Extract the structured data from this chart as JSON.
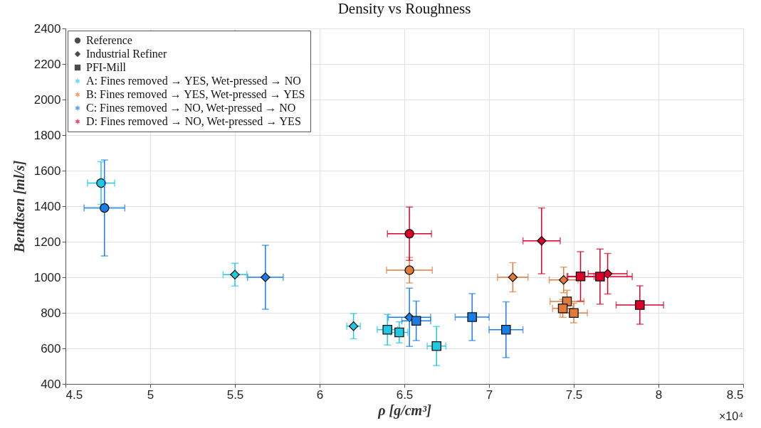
{
  "chart_data": {
    "type": "scatter",
    "title": "Density vs Roughness",
    "xlabel": "ρ [g/cm³]",
    "ylabel": "Bendtsen [ml/s]",
    "annotations": [
      "×10⁴"
    ],
    "xlim": [
      4.5,
      8.5
    ],
    "xticks": [
      4.5,
      5,
      5.5,
      6,
      6.5,
      7,
      7.5,
      8,
      8.5
    ],
    "ylim": [
      400,
      2400
    ],
    "yticks": [
      400,
      600,
      800,
      1000,
      1200,
      1400,
      1600,
      1800,
      2000,
      2200,
      2400
    ],
    "grid": true,
    "legend": "top left",
    "series": [
      {
        "name": "Reference",
        "color": "#000000",
        "marker": "circle"
      },
      {
        "name": "Industrial Refiner",
        "color": "#000000",
        "marker": "diamond"
      },
      {
        "name": "PFI-Mill",
        "color": "#000000",
        "marker": "square"
      },
      {
        "name": "A: Fines removed → YES, Wet-pressed → NO",
        "color": "#2bd0e8",
        "marker": "star"
      },
      {
        "name": "B: Fines removed → YES, Wet-pressed → YES",
        "color": "#e8823c",
        "marker": "star"
      },
      {
        "name": "C: Fines removed → NO, Wet-pressed → NO",
        "color": "#1e80f0",
        "marker": "star"
      },
      {
        "name": "D: Fines removed → NO, Wet-pressed → YES",
        "color": "#e0103a",
        "marker": "star"
      },
      {
        "color": "#1fc8e3",
        "marker": "circle",
        "x": [
          4.71
        ],
        "values": [
          1530
        ],
        "xerrors": [
          0.08
        ],
        "errors": [
          120
        ]
      },
      {
        "color": "#e07b39",
        "marker": "circle",
        "x": [
          6.53
        ],
        "values": [
          1040
        ],
        "xerrors": [
          0.135
        ],
        "errors": [
          72
        ]
      },
      {
        "color": "#1a7ee8",
        "marker": "circle",
        "x": [
          4.73
        ],
        "values": [
          1390
        ],
        "xerrors": [
          0.12
        ],
        "errors": [
          270
        ]
      },
      {
        "color": "#d9002b",
        "marker": "circle",
        "x": [
          6.53
        ],
        "values": [
          1245
        ],
        "xerrors": [
          0.13
        ],
        "errors": [
          150
        ]
      },
      {
        "color": "#1fc8e3",
        "marker": "diamond",
        "x": [
          5.5,
          6.2
        ],
        "values": [
          1015,
          725
        ],
        "xerrors": [
          0.07,
          0.04
        ],
        "errors": [
          64,
          71
        ]
      },
      {
        "color": "#e07b39",
        "marker": "diamond",
        "x": [
          7.14,
          7.44
        ],
        "values": [
          1000,
          985
        ],
        "xerrors": [
          0.09,
          0.085
        ],
        "errors": [
          82,
          72
        ]
      },
      {
        "color": "#1a7ee8",
        "marker": "diamond",
        "x": [
          5.68,
          6.53
        ],
        "values": [
          1000,
          775
        ],
        "xerrors": [
          0.105,
          0.125
        ],
        "errors": [
          180,
          164
        ]
      },
      {
        "color": "#d9002b",
        "marker": "diamond",
        "x": [
          7.31,
          7.7
        ],
        "values": [
          1205,
          1020
        ],
        "xerrors": [
          0.11,
          0.115
        ],
        "errors": [
          185,
          114
        ]
      },
      {
        "color": "#1fc8e3",
        "marker": "square",
        "x": [
          6.4,
          6.47,
          6.69
        ],
        "values": [
          705,
          690,
          613
        ],
        "xerrors": [
          0.06,
          0.05,
          0.055
        ],
        "errors": [
          86,
          59,
          110
        ]
      },
      {
        "color": "#e07b39",
        "marker": "square",
        "x": [
          7.46,
          7.435,
          7.5
        ],
        "values": [
          864,
          825,
          799
        ],
        "xerrors": [
          0.1,
          0.06,
          0.08
        ],
        "errors": [
          63,
          50,
          55
        ]
      },
      {
        "color": "#1a7ee8",
        "marker": "square",
        "x": [
          6.57,
          6.9,
          7.1
        ],
        "values": [
          755,
          776,
          705
        ],
        "xerrors": [
          0.085,
          0.1,
          0.1
        ],
        "errors": [
          111,
          132,
          157
        ]
      },
      {
        "color": "#d9002b",
        "marker": "square",
        "x": [
          7.54,
          7.655,
          7.89
        ],
        "values": [
          1005,
          1004,
          844
        ],
        "xerrors": [
          0.08,
          0.19,
          0.14
        ],
        "errors": [
          139,
          155,
          108
        ]
      }
    ]
  }
}
